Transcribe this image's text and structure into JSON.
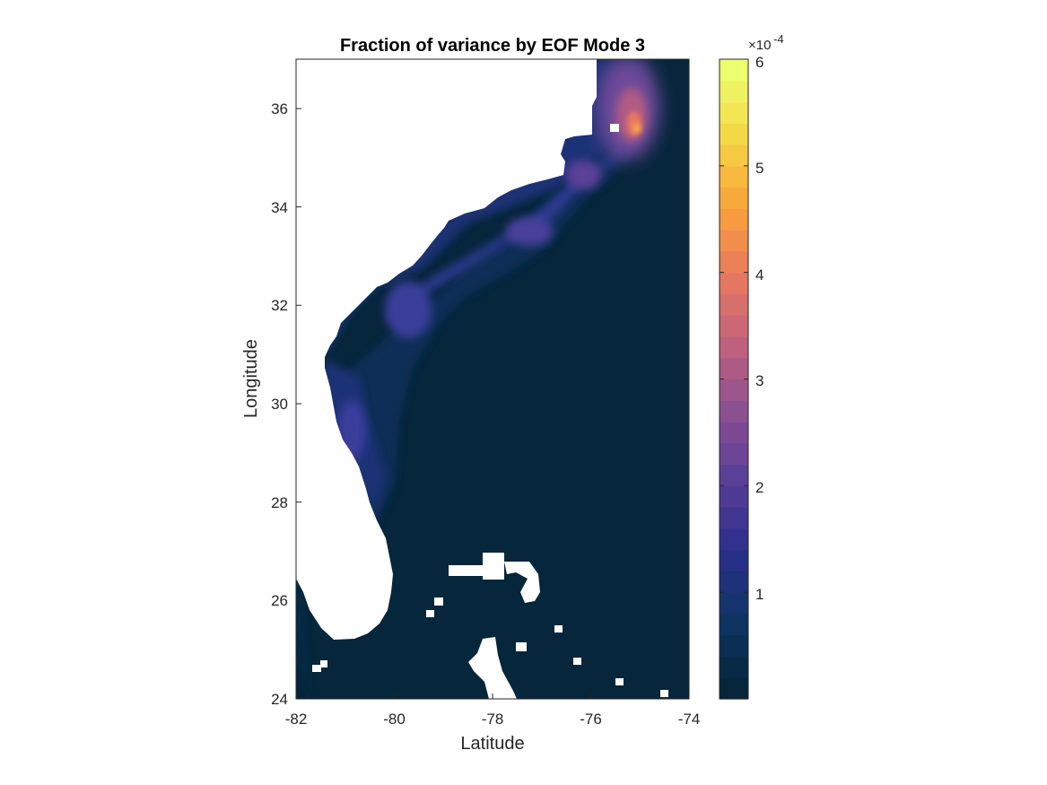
{
  "chart_data": {
    "type": "heatmap",
    "title": "Fraction of variance by EOF Mode 3",
    "xlabel": "Latitude",
    "ylabel": "Longitude",
    "xlim": [
      -82,
      -74
    ],
    "ylim": [
      24,
      37
    ],
    "x_ticks": [
      "-82",
      "-80",
      "-78",
      "-76",
      "-74"
    ],
    "y_ticks": [
      "24",
      "26",
      "28",
      "30",
      "32",
      "34",
      "36"
    ],
    "colorbar": {
      "range": [
        0,
        0.0006
      ],
      "exponent_label": "×10",
      "exponent_power": "-4",
      "ticks": [
        "1",
        "2",
        "3",
        "4",
        "5",
        "6"
      ],
      "levels": 30,
      "colors": [
        "#05263b",
        "#0e3463",
        "#2b2e8c",
        "#563e98",
        "#8a4f92",
        "#c0627d",
        "#e8795e",
        "#f9a23a",
        "#f5d644",
        "#ecff6d"
      ]
    },
    "ocean_background_value": 0,
    "land_color": "#ffffff",
    "features": [
      {
        "region": "coastal shelf Florida to Cape Hatteras",
        "lon_range": [
          -81.5,
          -75.2
        ],
        "lat_range": [
          24.5,
          35.6
        ],
        "value_approx": 8e-05
      },
      {
        "region": "Georgia/South Carolina shelf",
        "lon": -79.7,
        "lat": 31.9,
        "value_approx": 0.00012
      },
      {
        "region": "northeast Florida shelf",
        "lon": -81.0,
        "lat": 29.8,
        "value_approx": 0.00012
      },
      {
        "region": "Onslow/Long Bay shelf",
        "lon": -77.5,
        "lat": 33.4,
        "value_approx": 0.00013
      },
      {
        "region": "Cape Hatteras maximum",
        "lon": -75.0,
        "lat": 35.6,
        "value_approx": 0.00058
      },
      {
        "region": "north of Cape Hatteras",
        "lon": -75.3,
        "lat": 36.5,
        "value_approx": 0.00035
      }
    ]
  }
}
